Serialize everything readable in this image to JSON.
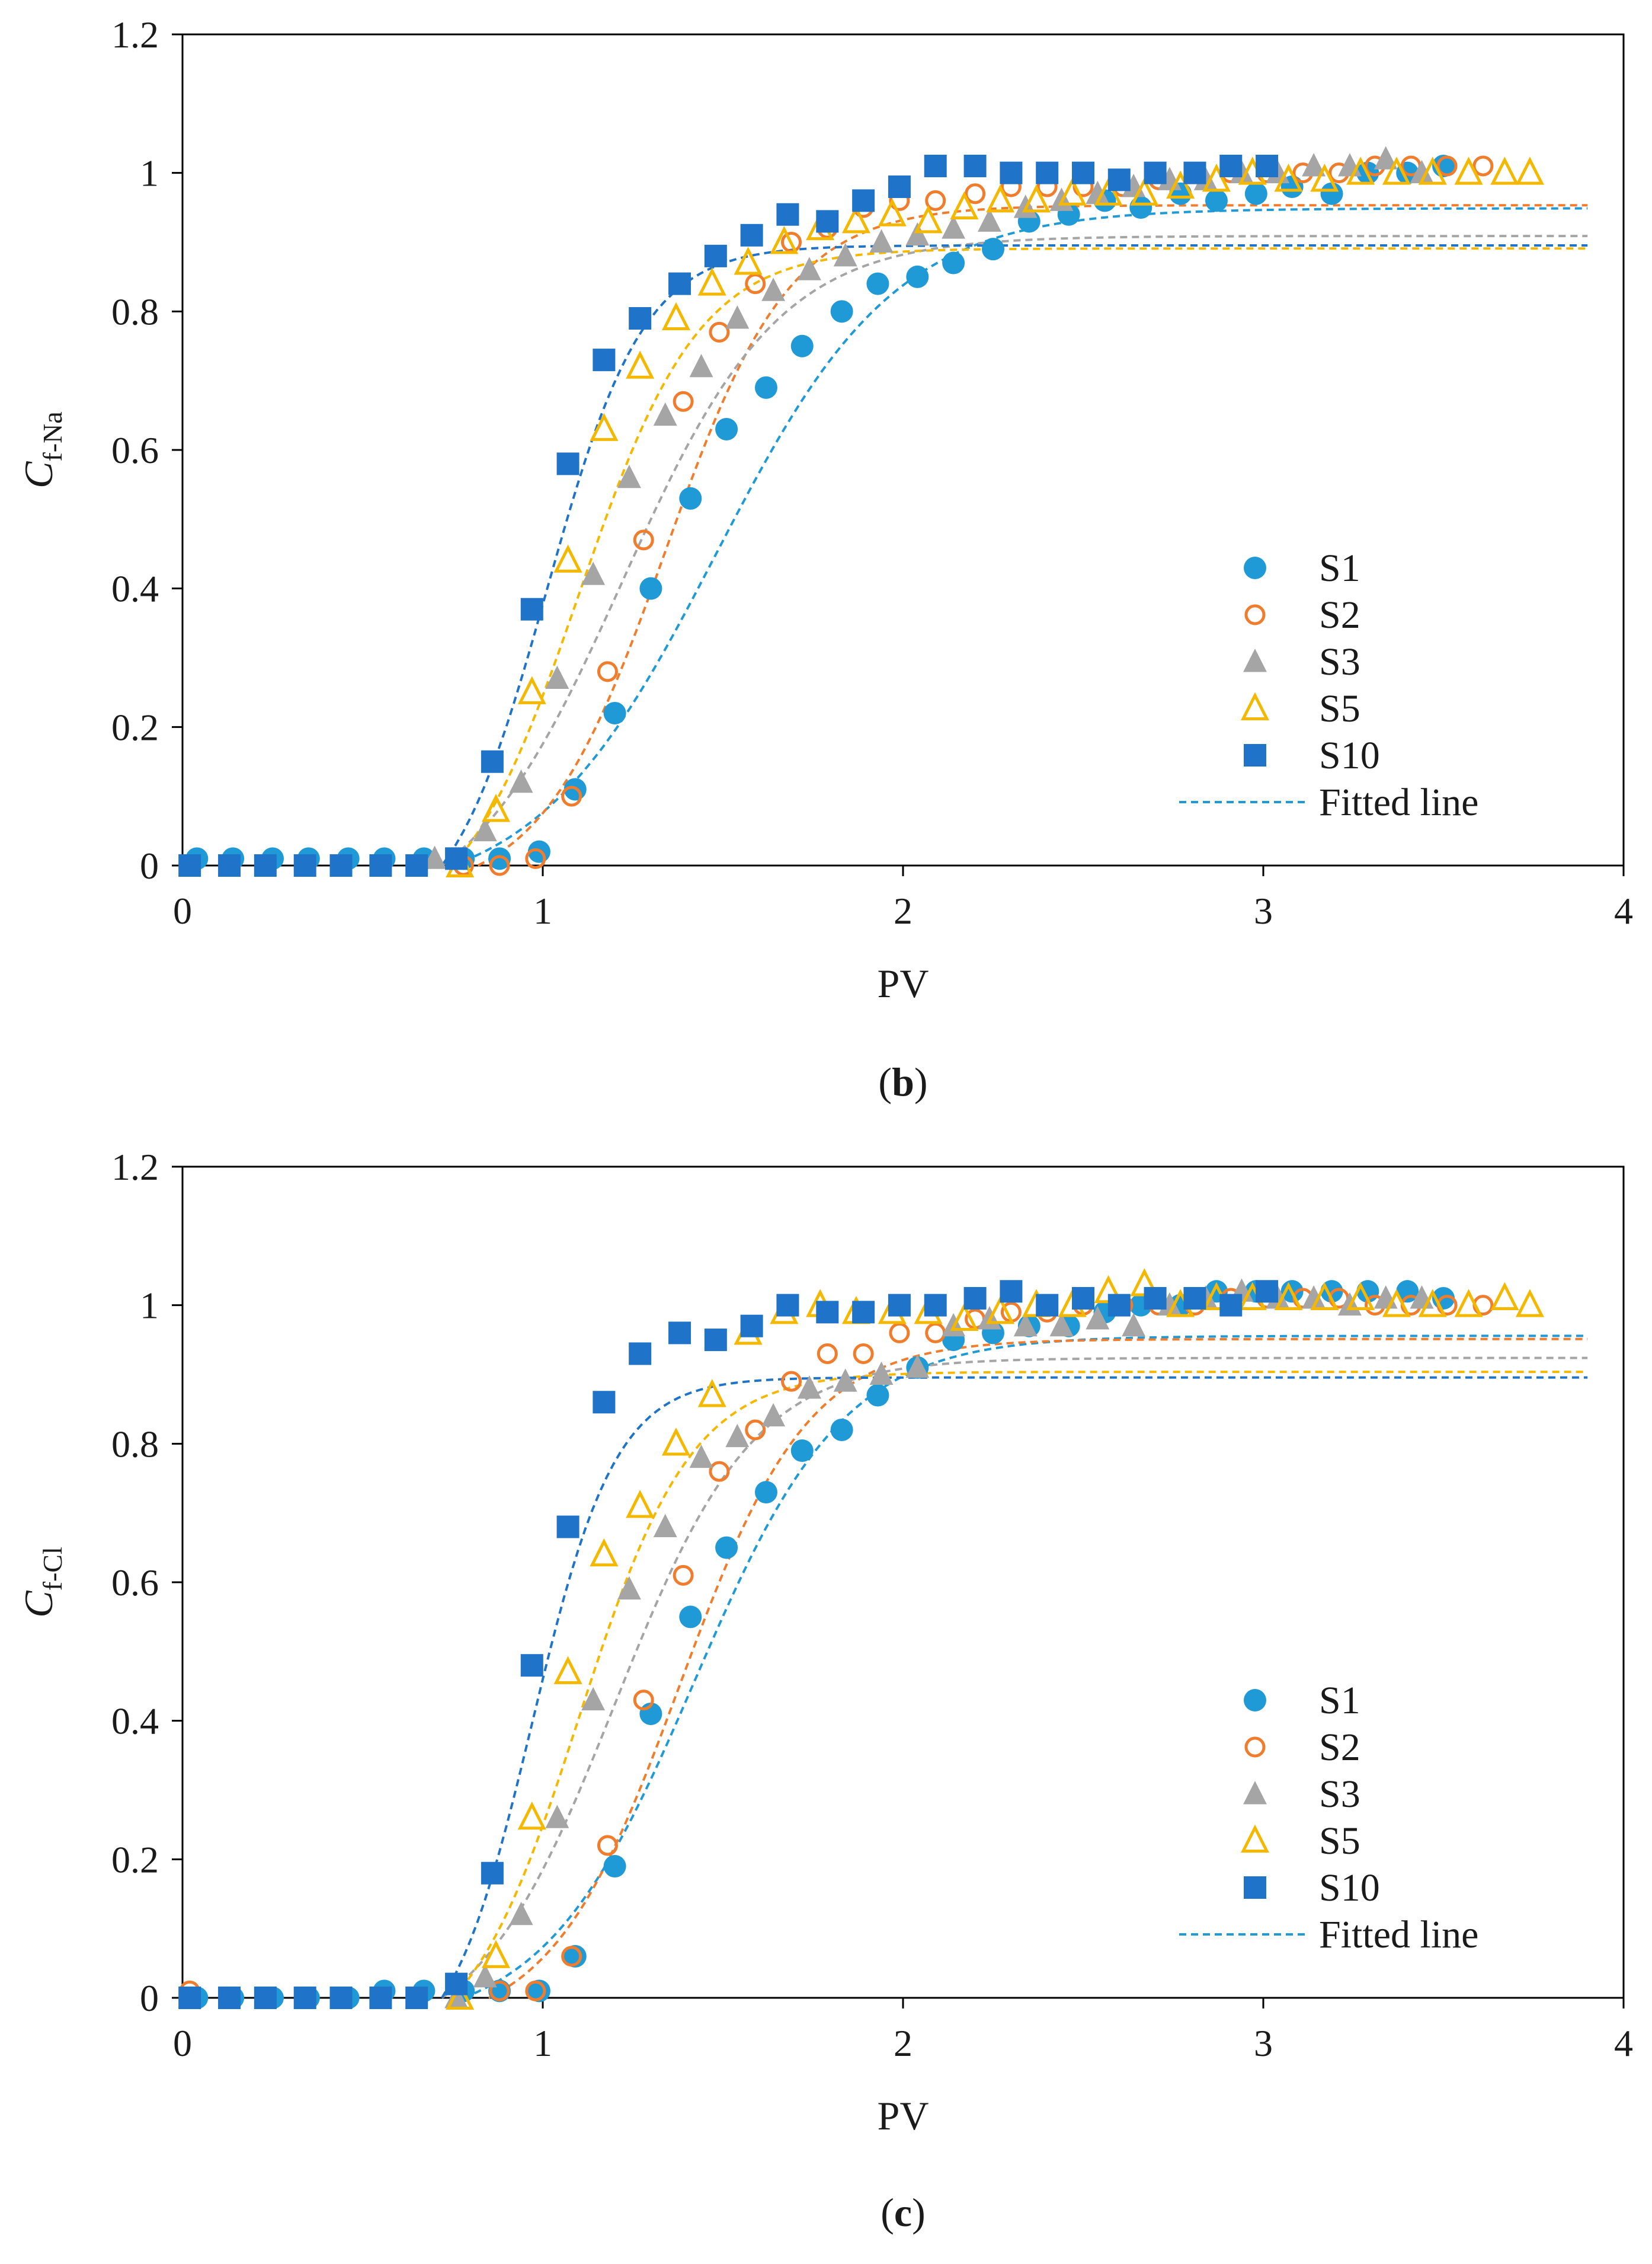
{
  "charts": [
    {
      "caption_label": "b",
      "ylabel_main": "C",
      "ylabel_sub": "f-Na",
      "chart_data": {
        "type": "scatter",
        "title": "",
        "xlabel": "PV",
        "ylabel": "Cf-Na",
        "xlim": [
          0,
          4
        ],
        "ylim": [
          0,
          1.2
        ],
        "xticks": [
          "0",
          "1",
          "2",
          "3",
          "4"
        ],
        "yticks": [
          "0",
          "0.2",
          "0.4",
          "0.6",
          "0.8",
          "1",
          "1.2"
        ],
        "legend_position": "lower-right",
        "legend": [
          "S1",
          "S2",
          "S3",
          "S5",
          "S10",
          "Fitted line"
        ],
        "fit_label": "Fitted line",
        "series": [
          {
            "name": "S1",
            "marker": "circle-filled",
            "color": "#1f9ad6",
            "fit": {
              "x0": 1.48,
              "k": 4.0,
              "start": 0.75
            },
            "x": [
              0.04,
              0.14,
              0.25,
              0.35,
              0.46,
              0.56,
              0.67,
              0.78,
              0.88,
              0.99,
              1.09,
              1.2,
              1.3,
              1.41,
              1.51,
              1.62,
              1.72,
              1.83,
              1.93,
              2.04,
              2.14,
              2.25,
              2.35,
              2.46,
              2.56,
              2.66,
              2.77,
              2.87,
              2.98,
              3.08,
              3.19,
              3.29,
              3.4,
              3.5
            ],
            "y": [
              0.01,
              0.01,
              0.01,
              0.01,
              0.01,
              0.01,
              0.01,
              0.01,
              0.01,
              0.02,
              0.11,
              0.22,
              0.4,
              0.53,
              0.63,
              0.69,
              0.75,
              0.8,
              0.84,
              0.85,
              0.87,
              0.89,
              0.93,
              0.94,
              0.96,
              0.95,
              0.97,
              0.96,
              0.97,
              0.98,
              0.97,
              1.0,
              1.0,
              1.01
            ]
          },
          {
            "name": "S2",
            "marker": "circle-open",
            "color": "#f07c2c",
            "fit": {
              "x0": 1.34,
              "k": 5.8,
              "start": 0.82
            },
            "x": [
              0.78,
              0.88,
              0.98,
              1.08,
              1.18,
              1.28,
              1.39,
              1.49,
              1.59,
              1.69,
              1.79,
              1.89,
              1.99,
              2.09,
              2.2,
              2.3,
              2.4,
              2.5,
              2.61,
              2.71,
              2.81,
              2.91,
              3.01,
              3.11,
              3.21,
              3.31,
              3.41,
              3.51,
              3.61
            ],
            "y": [
              0.0,
              0.0,
              0.01,
              0.1,
              0.28,
              0.47,
              0.67,
              0.77,
              0.84,
              0.9,
              0.92,
              0.95,
              0.96,
              0.96,
              0.97,
              0.98,
              0.98,
              0.98,
              0.98,
              0.99,
              1.0,
              1.0,
              1.0,
              1.0,
              1.0,
              1.01,
              1.01,
              1.01,
              1.01
            ]
          },
          {
            "name": "S3",
            "marker": "triangle-filled",
            "color": "#a5a5a5",
            "fit": {
              "x0": 1.22,
              "k": 4.6,
              "start": 0.72
            },
            "x": [
              0.7,
              0.84,
              0.94,
              1.04,
              1.14,
              1.24,
              1.34,
              1.44,
              1.54,
              1.64,
              1.74,
              1.84,
              1.94,
              2.04,
              2.14,
              2.24,
              2.34,
              2.44,
              2.54,
              2.64,
              2.74,
              2.84,
              2.94,
              3.04,
              3.14,
              3.24,
              3.34,
              3.44
            ],
            "y": [
              0.01,
              0.05,
              0.12,
              0.27,
              0.42,
              0.56,
              0.65,
              0.72,
              0.79,
              0.83,
              0.86,
              0.88,
              0.9,
              0.91,
              0.92,
              0.93,
              0.95,
              0.96,
              0.97,
              0.98,
              0.99,
              0.99,
              1.0,
              1.0,
              1.01,
              1.01,
              1.02,
              1.0
            ]
          },
          {
            "name": "S5",
            "marker": "triangle-open",
            "color": "#f5b800",
            "fit": {
              "x0": 1.1,
              "k": 6.0,
              "start": 0.75
            },
            "x": [
              0.77,
              0.87,
              0.97,
              1.07,
              1.17,
              1.27,
              1.37,
              1.47,
              1.57,
              1.67,
              1.77,
              1.87,
              1.97,
              2.07,
              2.17,
              2.27,
              2.37,
              2.47,
              2.57,
              2.67,
              2.77,
              2.87,
              2.97,
              3.07,
              3.17,
              3.27,
              3.37,
              3.47,
              3.57,
              3.67,
              3.74
            ],
            "y": [
              0.0,
              0.08,
              0.25,
              0.44,
              0.63,
              0.72,
              0.79,
              0.84,
              0.87,
              0.9,
              0.92,
              0.93,
              0.94,
              0.93,
              0.95,
              0.96,
              0.96,
              0.97,
              0.97,
              0.97,
              0.98,
              0.99,
              1.0,
              0.99,
              0.99,
              1.0,
              1.0,
              1.0,
              1.0,
              1.0,
              1.0
            ]
          },
          {
            "name": "S10",
            "marker": "square-filled",
            "color": "#1f73c8",
            "fit": {
              "x0": 1.01,
              "k": 7.4,
              "start": 0.72
            },
            "x": [
              0.02,
              0.13,
              0.23,
              0.34,
              0.44,
              0.55,
              0.65,
              0.76,
              0.86,
              0.97,
              1.07,
              1.17,
              1.27,
              1.38,
              1.48,
              1.58,
              1.68,
              1.79,
              1.89,
              1.99,
              2.09,
              2.2,
              2.3,
              2.4,
              2.5,
              2.6,
              2.7,
              2.81,
              2.91,
              3.01
            ],
            "y": [
              0.0,
              0.0,
              0.0,
              0.0,
              0.0,
              0.0,
              0.0,
              0.01,
              0.15,
              0.37,
              0.58,
              0.73,
              0.79,
              0.84,
              0.88,
              0.91,
              0.94,
              0.93,
              0.96,
              0.98,
              1.01,
              1.01,
              1.0,
              1.0,
              1.0,
              0.99,
              1.0,
              1.0,
              1.01,
              1.01
            ]
          }
        ]
      }
    },
    {
      "caption_label": "c",
      "ylabel_main": "C",
      "ylabel_sub": "f-Cl",
      "chart_data": {
        "type": "scatter",
        "title": "",
        "xlabel": "PV",
        "ylabel": "Cf-Cl",
        "xlim": [
          0,
          4
        ],
        "ylim": [
          0,
          1.2
        ],
        "xticks": [
          "0",
          "1",
          "2",
          "3",
          "4"
        ],
        "yticks": [
          "0",
          "0.2",
          "0.4",
          "0.6",
          "0.8",
          "1",
          "1.2"
        ],
        "legend_position": "lower-right",
        "legend": [
          "S1",
          "S2",
          "S3",
          "S5",
          "S10",
          "Fitted line"
        ],
        "fit_label": "Fitted line",
        "series": [
          {
            "name": "S1",
            "marker": "circle-filled",
            "color": "#1f9ad6",
            "fit": {
              "x0": 1.42,
              "k": 4.8,
              "start": 0.78
            },
            "x": [
              0.04,
              0.14,
              0.25,
              0.35,
              0.46,
              0.56,
              0.67,
              0.78,
              0.88,
              0.99,
              1.09,
              1.2,
              1.3,
              1.41,
              1.51,
              1.62,
              1.72,
              1.83,
              1.93,
              2.04,
              2.14,
              2.25,
              2.35,
              2.46,
              2.56,
              2.66,
              2.77,
              2.87,
              2.98,
              3.08,
              3.19,
              3.29,
              3.4,
              3.5
            ],
            "y": [
              0.0,
              0.0,
              0.0,
              0.0,
              0.0,
              0.01,
              0.01,
              0.01,
              0.01,
              0.01,
              0.06,
              0.19,
              0.41,
              0.55,
              0.65,
              0.73,
              0.79,
              0.82,
              0.87,
              0.91,
              0.95,
              0.96,
              0.97,
              0.97,
              0.99,
              1.0,
              1.0,
              1.02,
              1.02,
              1.02,
              1.02,
              1.02,
              1.02,
              1.01
            ]
          },
          {
            "name": "S2",
            "marker": "circle-open",
            "color": "#f07c2c",
            "fit": {
              "x0": 1.38,
              "k": 5.6,
              "start": 0.85
            },
            "x": [
              0.02,
              0.88,
              0.98,
              1.08,
              1.18,
              1.28,
              1.39,
              1.49,
              1.59,
              1.69,
              1.79,
              1.89,
              1.99,
              2.09,
              2.2,
              2.3,
              2.4,
              2.5,
              2.61,
              2.71,
              2.81,
              2.91,
              3.01,
              3.11,
              3.21,
              3.31,
              3.41,
              3.51,
              3.61
            ],
            "y": [
              0.01,
              0.01,
              0.01,
              0.06,
              0.22,
              0.43,
              0.61,
              0.76,
              0.82,
              0.89,
              0.93,
              0.93,
              0.96,
              0.96,
              0.98,
              0.99,
              0.99,
              1.0,
              1.0,
              1.0,
              1.0,
              1.01,
              1.01,
              1.01,
              1.01,
              1.0,
              1.0,
              1.0,
              1.0
            ]
          },
          {
            "name": "S3",
            "marker": "triangle-filled",
            "color": "#a5a5a5",
            "fit": {
              "x0": 1.2,
              "k": 5.2,
              "start": 0.72
            },
            "x": [
              0.76,
              0.84,
              0.94,
              1.04,
              1.14,
              1.24,
              1.34,
              1.44,
              1.54,
              1.64,
              1.74,
              1.84,
              1.94,
              2.04,
              2.14,
              2.24,
              2.34,
              2.44,
              2.54,
              2.64,
              2.74,
              2.84,
              2.94,
              3.04,
              3.14,
              3.24,
              3.34,
              3.44
            ],
            "y": [
              0.0,
              0.03,
              0.12,
              0.26,
              0.43,
              0.59,
              0.68,
              0.78,
              0.81,
              0.84,
              0.88,
              0.89,
              0.9,
              0.91,
              0.97,
              0.98,
              0.97,
              0.97,
              0.98,
              0.97,
              1.0,
              1.01,
              1.02,
              1.01,
              1.01,
              1.0,
              1.01,
              1.01
            ]
          },
          {
            "name": "S5",
            "marker": "triangle-open",
            "color": "#f5b800",
            "fit": {
              "x0": 1.1,
              "k": 6.4,
              "start": 0.75
            },
            "x": [
              0.77,
              0.87,
              0.97,
              1.07,
              1.17,
              1.27,
              1.37,
              1.47,
              1.57,
              1.67,
              1.77,
              1.87,
              1.97,
              2.07,
              2.17,
              2.27,
              2.37,
              2.47,
              2.57,
              2.67,
              2.77,
              2.87,
              2.97,
              3.07,
              3.17,
              3.27,
              3.37,
              3.47,
              3.57,
              3.67,
              3.74
            ],
            "y": [
              0.0,
              0.06,
              0.26,
              0.47,
              0.64,
              0.71,
              0.8,
              0.87,
              0.96,
              0.99,
              1.0,
              0.99,
              0.99,
              0.99,
              0.98,
              0.99,
              1.0,
              1.0,
              1.02,
              1.03,
              1.0,
              1.01,
              1.01,
              1.01,
              1.01,
              1.01,
              1.0,
              1.0,
              1.0,
              1.01,
              1.0
            ]
          },
          {
            "name": "S10",
            "marker": "square-filled",
            "color": "#1f73c8",
            "fit": {
              "x0": 0.97,
              "k": 8.6,
              "start": 0.72
            },
            "x": [
              0.02,
              0.13,
              0.23,
              0.34,
              0.44,
              0.55,
              0.65,
              0.76,
              0.86,
              0.97,
              1.07,
              1.17,
              1.27,
              1.38,
              1.48,
              1.58,
              1.68,
              1.79,
              1.89,
              1.99,
              2.09,
              2.2,
              2.3,
              2.4,
              2.5,
              2.6,
              2.7,
              2.81,
              2.91,
              3.01
            ],
            "y": [
              0.0,
              0.0,
              0.0,
              0.0,
              0.0,
              0.0,
              0.0,
              0.02,
              0.18,
              0.48,
              0.68,
              0.86,
              0.93,
              0.96,
              0.95,
              0.97,
              1.0,
              0.99,
              0.99,
              1.0,
              1.0,
              1.01,
              1.02,
              1.0,
              1.01,
              1.0,
              1.01,
              1.01,
              1.0,
              1.02
            ]
          }
        ]
      }
    }
  ]
}
